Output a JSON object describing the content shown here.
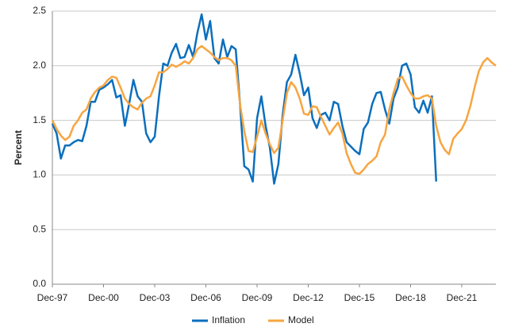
{
  "chart_data": {
    "type": "line",
    "ylabel": "Percent",
    "categories": [
      "Dec-97",
      null,
      null,
      null,
      null,
      null,
      null,
      null,
      null,
      null,
      null,
      null,
      "Dec-00",
      null,
      null,
      null,
      null,
      null,
      null,
      null,
      null,
      null,
      null,
      null,
      "Dec-03",
      null,
      null,
      null,
      null,
      null,
      null,
      null,
      null,
      null,
      null,
      null,
      "Dec-06",
      null,
      null,
      null,
      null,
      null,
      null,
      null,
      null,
      null,
      null,
      null,
      "Dec-09",
      null,
      null,
      null,
      null,
      null,
      null,
      null,
      null,
      null,
      null,
      null,
      "Dec-12",
      null,
      null,
      null,
      null,
      null,
      null,
      null,
      null,
      null,
      null,
      null,
      "Dec-15",
      null,
      null,
      null,
      null,
      null,
      null,
      null,
      null,
      null,
      null,
      null,
      "Dec-18",
      null,
      null,
      null,
      null,
      null,
      null,
      null,
      null,
      null,
      null,
      null,
      "Dec-21",
      null,
      null,
      null,
      null,
      null,
      null,
      null,
      null
    ],
    "series": [
      {
        "name": "Inflation",
        "color": "#0b6fbd",
        "values": [
          1.47,
          1.38,
          1.15,
          1.27,
          1.27,
          1.3,
          1.32,
          1.31,
          1.45,
          1.67,
          1.67,
          1.78,
          1.8,
          1.83,
          1.87,
          1.71,
          1.73,
          1.45,
          1.65,
          1.87,
          1.72,
          1.67,
          1.38,
          1.3,
          1.35,
          1.72,
          2.02,
          2.0,
          2.12,
          2.2,
          2.07,
          2.08,
          2.19,
          2.08,
          2.3,
          2.47,
          2.24,
          2.41,
          2.07,
          2.02,
          2.24,
          2.08,
          2.18,
          2.15,
          1.65,
          1.08,
          1.05,
          0.94,
          1.52,
          1.72,
          1.45,
          1.25,
          0.92,
          1.1,
          1.55,
          1.85,
          1.92,
          2.1,
          1.93,
          1.73,
          1.8,
          1.52,
          1.43,
          1.55,
          1.57,
          1.5,
          1.67,
          1.65,
          1.45,
          1.3,
          1.26,
          1.22,
          1.19,
          1.42,
          1.48,
          1.65,
          1.75,
          1.76,
          1.6,
          1.47,
          1.7,
          1.8,
          2.0,
          2.02,
          1.92,
          1.62,
          1.57,
          1.68,
          1.57,
          1.72,
          0.94,
          null,
          null,
          null,
          null,
          null,
          null,
          null,
          null,
          null,
          null,
          null,
          null,
          null,
          null
        ]
      },
      {
        "name": "Model",
        "color": "#f7a541",
        "values": [
          1.5,
          1.42,
          1.36,
          1.32,
          1.35,
          1.45,
          1.5,
          1.57,
          1.6,
          1.7,
          1.76,
          1.8,
          1.82,
          1.87,
          1.9,
          1.89,
          1.8,
          1.7,
          1.65,
          1.62,
          1.6,
          1.66,
          1.7,
          1.72,
          1.82,
          1.94,
          1.94,
          1.97,
          2.01,
          1.99,
          2.01,
          2.04,
          2.02,
          2.07,
          2.15,
          2.18,
          2.15,
          2.12,
          2.08,
          2.05,
          2.07,
          2.07,
          2.05,
          2.0,
          1.65,
          1.4,
          1.22,
          1.21,
          1.35,
          1.5,
          1.38,
          1.28,
          1.2,
          1.25,
          1.5,
          1.75,
          1.85,
          1.8,
          1.7,
          1.56,
          1.55,
          1.63,
          1.62,
          1.53,
          1.45,
          1.37,
          1.43,
          1.48,
          1.38,
          1.2,
          1.1,
          1.02,
          1.01,
          1.05,
          1.1,
          1.13,
          1.17,
          1.3,
          1.37,
          1.6,
          1.75,
          1.88,
          1.9,
          1.82,
          1.75,
          1.7,
          1.7,
          1.72,
          1.73,
          1.7,
          1.45,
          1.3,
          1.23,
          1.19,
          1.33,
          1.38,
          1.42,
          1.5,
          1.63,
          1.8,
          1.95,
          2.03,
          2.07,
          2.03,
          2.0
        ]
      }
    ],
    "ylim": [
      0,
      2.5
    ],
    "yticks": [
      {
        "value": 0,
        "label": "0.0"
      },
      0.5,
      {
        "value": 1,
        "label": "1.0"
      },
      1.5,
      {
        "value": 2,
        "label": "2.0"
      },
      2.5
    ],
    "grid": true,
    "legend": "bottom"
  }
}
